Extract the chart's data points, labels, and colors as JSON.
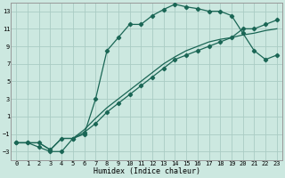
{
  "xlabel": "Humidex (Indice chaleur)",
  "background_color": "#cce8e0",
  "grid_color": "#aaccc4",
  "line_color": "#1a6655",
  "xlim": [
    -0.5,
    23.5
  ],
  "ylim": [
    -4,
    14
  ],
  "xticks": [
    0,
    1,
    2,
    3,
    4,
    5,
    6,
    7,
    8,
    9,
    10,
    11,
    12,
    13,
    14,
    15,
    16,
    17,
    18,
    19,
    20,
    21,
    22,
    23
  ],
  "yticks": [
    -3,
    -1,
    1,
    3,
    5,
    7,
    9,
    11,
    13
  ],
  "line1_x": [
    0,
    1,
    2,
    3,
    4,
    5,
    6,
    7,
    8,
    9,
    10,
    11,
    12,
    13,
    14,
    15,
    16,
    17,
    18,
    19,
    20,
    21,
    22,
    23
  ],
  "line1_y": [
    -2,
    -2,
    -2.5,
    -3,
    -3,
    -1.5,
    -1,
    3,
    8.5,
    10,
    11.5,
    11.5,
    12.5,
    13.2,
    13.8,
    13.5,
    13.3,
    13.0,
    13.0,
    12.5,
    10.5,
    8.5,
    7.5,
    8.0
  ],
  "line2_x": [
    0,
    1,
    2,
    3,
    4,
    5,
    6,
    7,
    8,
    9,
    10,
    11,
    12,
    13,
    14,
    15,
    16,
    17,
    18,
    19,
    20,
    21,
    22,
    23
  ],
  "line2_y": [
    -2,
    -2,
    -2,
    -2.8,
    -1.5,
    -1.5,
    -0.8,
    0.2,
    1.5,
    2.5,
    3.5,
    4.5,
    5.5,
    6.5,
    7.5,
    8.0,
    8.5,
    9.0,
    9.5,
    10.0,
    11.0,
    11.0,
    11.5,
    12.0
  ],
  "line3_x": [
    0,
    1,
    2,
    3,
    4,
    5,
    6,
    7,
    8,
    9,
    10,
    11,
    12,
    13,
    14,
    15,
    16,
    17,
    18,
    19,
    20,
    21,
    22,
    23
  ],
  "line3_y": [
    -2,
    -2,
    -2,
    -2.8,
    -1.5,
    -1.5,
    -0.5,
    0.8,
    2.0,
    3.0,
    4.0,
    5.0,
    6.0,
    7.0,
    7.8,
    8.5,
    9.0,
    9.5,
    9.8,
    10.0,
    10.3,
    10.5,
    10.8,
    11.0
  ],
  "figwidth": 3.2,
  "figheight": 2.0,
  "dpi": 100
}
